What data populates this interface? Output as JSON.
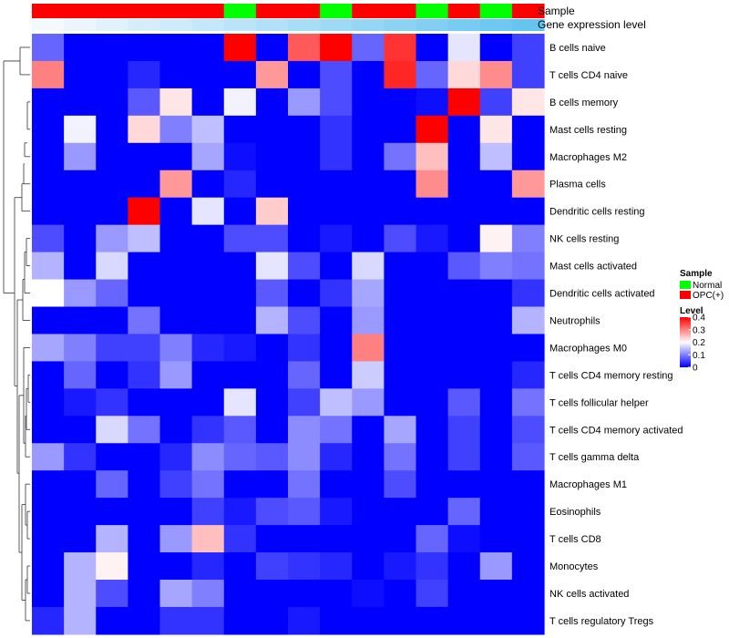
{
  "chart_data": {
    "type": "heatmap",
    "rows": [
      "B cells naive",
      "T cells CD4 naive",
      "B cells memory",
      "Mast cells resting",
      "Macrophages M2",
      "Plasma cells",
      "Dendritic cells resting",
      "NK cells resting",
      "Mast cells activated",
      "Dendritic cells activated",
      "Neutrophils",
      "Macrophages M0",
      "T cells CD4 memory resting",
      "T cells follicular helper",
      "T cells CD4 memory activated",
      "T cells gamma delta",
      "Macrophages M1",
      "Eosinophils",
      "T cells CD8",
      "Monocytes",
      "NK cells activated",
      "T cells regulatory  Tregs"
    ],
    "sample": [
      "OPC(+)",
      "OPC(+)",
      "OPC(+)",
      "OPC(+)",
      "OPC(+)",
      "OPC(+)",
      "Normal",
      "OPC(+)",
      "OPC(+)",
      "Normal",
      "OPC(+)",
      "OPC(+)",
      "Normal",
      "OPC(+)",
      "Normal",
      "OPC(+)"
    ],
    "gene_expression_level": [
      0.0,
      0.01,
      0.02,
      0.03,
      0.04,
      0.05,
      0.06,
      0.07,
      0.08,
      0.09,
      0.1,
      0.11,
      0.12,
      0.13,
      0.14,
      0.15
    ],
    "values": [
      [
        0.08,
        0,
        0,
        0,
        0,
        0,
        0.4,
        0,
        0.33,
        0.4,
        0.08,
        0.36,
        0,
        0.18,
        0,
        0.05
      ],
      [
        0.3,
        0,
        0,
        0.03,
        0,
        0,
        0,
        0.28,
        0,
        0.06,
        0,
        0.37,
        0.08,
        0.23,
        0.29,
        0.05
      ],
      [
        0,
        0,
        0,
        0.07,
        0.22,
        0,
        0.19,
        0,
        0.12,
        0.06,
        0,
        0,
        0.01,
        0.4,
        0.05,
        0.22
      ],
      [
        0,
        0.19,
        0,
        0.23,
        0.1,
        0.15,
        0,
        0,
        0,
        0.04,
        0,
        0,
        0.4,
        0,
        0.22,
        0
      ],
      [
        0,
        0.12,
        0,
        0,
        0,
        0.13,
        0.01,
        0,
        0,
        0.04,
        0,
        0.09,
        0.25,
        0,
        0.15,
        0
      ],
      [
        0,
        0,
        0,
        0,
        0.28,
        0,
        0.03,
        0,
        0,
        0,
        0,
        0,
        0.29,
        0,
        0,
        0.28
      ],
      [
        0,
        0,
        0,
        0.4,
        0,
        0.18,
        0,
        0.24,
        0,
        0,
        0,
        0,
        0,
        0,
        0,
        0
      ],
      [
        0.06,
        0,
        0.12,
        0.15,
        0,
        0,
        0.06,
        0.06,
        0,
        0.02,
        0,
        0.06,
        0.02,
        0,
        0.21,
        0.1
      ],
      [
        0.14,
        0,
        0.17,
        0,
        0,
        0,
        0,
        0.18,
        0.06,
        0,
        0.17,
        0,
        0,
        0.07,
        0.1,
        0.09
      ],
      [
        0.2,
        0.12,
        0.08,
        0,
        0,
        0,
        0,
        0.07,
        0,
        0.04,
        0.13,
        0,
        0,
        0,
        0,
        0.04
      ],
      [
        0,
        0,
        0,
        0.09,
        0,
        0,
        0,
        0.14,
        0.06,
        0,
        0.12,
        0,
        0,
        0,
        0,
        0.14
      ],
      [
        0.13,
        0.1,
        0.05,
        0.05,
        0.1,
        0.03,
        0.02,
        0,
        0.04,
        0,
        0.3,
        0,
        0,
        0,
        0,
        0
      ],
      [
        0,
        0.08,
        0,
        0.04,
        0.12,
        0,
        0,
        0,
        0.08,
        0,
        0.16,
        0,
        0,
        0,
        0,
        0.03
      ],
      [
        0,
        0.02,
        0.04,
        0,
        0,
        0,
        0.18,
        0,
        0.05,
        0.15,
        0.12,
        0,
        0,
        0.07,
        0,
        0.09
      ],
      [
        0,
        0,
        0.17,
        0.09,
        0,
        0.04,
        0.07,
        0,
        0.11,
        0.09,
        0,
        0.13,
        0,
        0.05,
        0,
        0.06
      ],
      [
        0.12,
        0.04,
        0,
        0,
        0.03,
        0.11,
        0.08,
        0.07,
        0.11,
        0.03,
        0,
        0.09,
        0,
        0.05,
        0,
        0.07
      ],
      [
        0,
        0,
        0.08,
        0,
        0.05,
        0.09,
        0,
        0,
        0.09,
        0,
        0,
        0.06,
        0,
        0,
        0,
        0
      ],
      [
        0,
        0,
        0,
        0,
        0,
        0.05,
        0.02,
        0.06,
        0.07,
        0.02,
        0,
        0,
        0,
        0.08,
        0,
        0
      ],
      [
        0,
        0,
        0.14,
        0,
        0.12,
        0.25,
        0.04,
        0,
        0,
        0,
        0,
        0,
        0.08,
        0.01,
        0,
        0
      ],
      [
        0,
        0.14,
        0.21,
        0,
        0,
        0.03,
        0,
        0.05,
        0.04,
        0.03,
        0,
        0.02,
        0.04,
        0,
        0.12,
        0
      ],
      [
        0,
        0.14,
        0.06,
        0,
        0.13,
        0.1,
        0,
        0,
        0,
        0,
        0.01,
        0,
        0.05,
        0,
        0,
        0
      ],
      [
        0.03,
        0.14,
        0,
        0,
        0.04,
        0.04,
        0,
        0,
        0.02,
        0,
        0,
        0,
        0,
        0,
        0,
        0
      ]
    ],
    "track_labels": [
      "Sample",
      "Gene expression level"
    ],
    "legend_sample": {
      "title": "Sample",
      "items": [
        {
          "label": "Normal",
          "color": "#00ff00"
        },
        {
          "label": "OPC(+)",
          "color": "#ff0000"
        }
      ]
    },
    "legend_level": {
      "title": "Level",
      "ticks": [
        "0.4",
        "0.3",
        "0.2",
        "0.1",
        "0"
      ],
      "tick_values": [
        0.4,
        0.3,
        0.2,
        0.1,
        0
      ],
      "colors": {
        "low": "#0000ff",
        "mid": "#ffffff",
        "high": "#ff0000"
      },
      "range": [
        0,
        0.4
      ]
    },
    "track_colors": {
      "expression_low": "#f4f9fd",
      "expression_high": "#65c4f0"
    },
    "dendrogram": "left (rows)",
    "legend_position": "right"
  }
}
